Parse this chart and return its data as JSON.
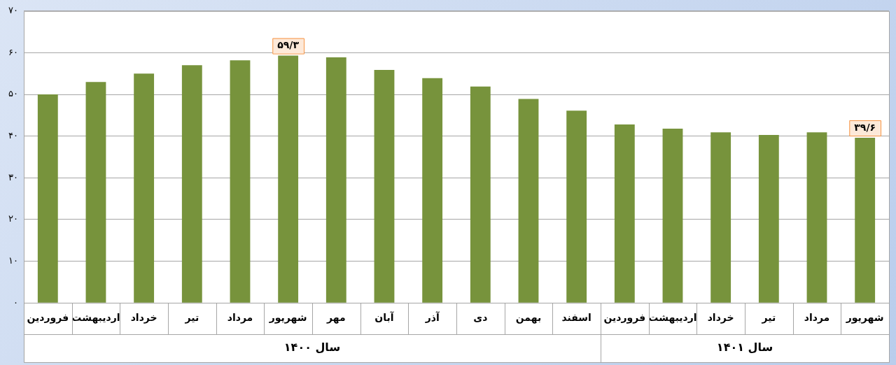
{
  "chart_data": {
    "type": "bar",
    "categories": [
      "فروردین",
      "اردیبهشت",
      "خرداد",
      "تیر",
      "مرداد",
      "شهریور",
      "مهر",
      "آبان",
      "آذر",
      "دی",
      "بهمن",
      "اسفند",
      "فروردین",
      "اردیبهشت",
      "خرداد",
      "تیر",
      "مرداد",
      "شهریور"
    ],
    "values": [
      50,
      53,
      55,
      57,
      58.2,
      59.3,
      58.9,
      55.9,
      53.9,
      51.9,
      48.9,
      46.1,
      42.8,
      41.8,
      40.9,
      40.3,
      40.9,
      39.6
    ],
    "value_labels": [
      null,
      null,
      null,
      null,
      null,
      "۵۹/۳",
      null,
      null,
      null,
      null,
      null,
      null,
      null,
      null,
      null,
      null,
      null,
      "۳۹/۶"
    ],
    "color": "#77933c",
    "ylim": [
      0,
      70
    ],
    "yticks": [
      {
        "value": 0,
        "label": "۰"
      },
      {
        "value": 10,
        "label": "۱۰"
      },
      {
        "value": 20,
        "label": "۲۰"
      },
      {
        "value": 30,
        "label": "۳۰"
      },
      {
        "value": 40,
        "label": "۴۰"
      },
      {
        "value": 50,
        "label": "۵۰"
      },
      {
        "value": 60,
        "label": "۶۰"
      },
      {
        "value": 70,
        "label": "۷۰"
      }
    ],
    "grid": "y",
    "legend": false,
    "annotations": [
      "سال ۱۴۰۰",
      "سال ۱۴۰۱"
    ]
  }
}
